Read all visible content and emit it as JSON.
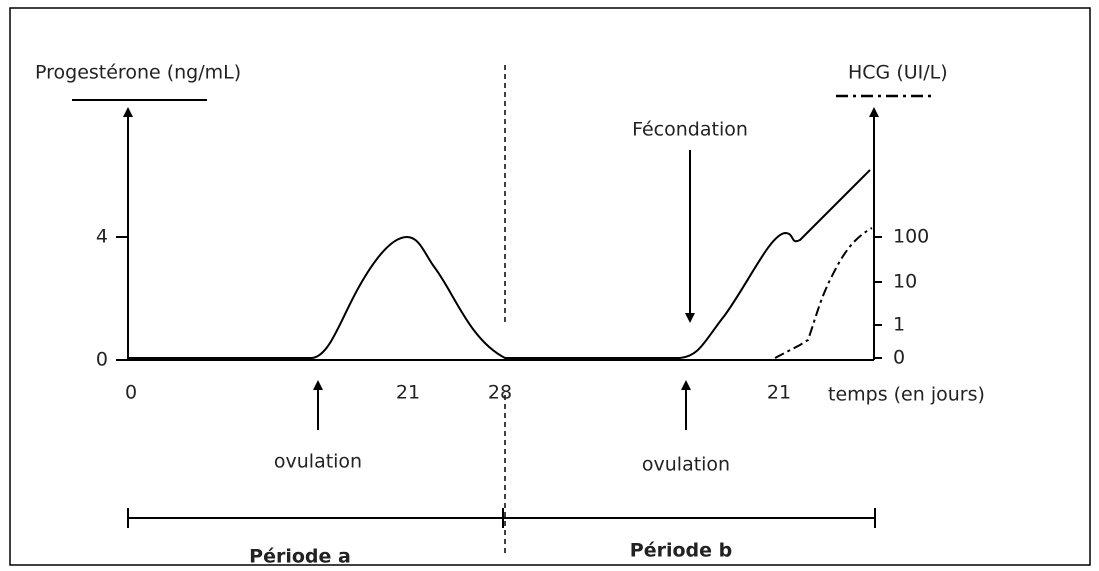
{
  "axes": {
    "left_label": "Progestérone (ng/mL)",
    "right_label": "HCG (UI/L)",
    "x_label": "temps (en jours)",
    "left_ticks": [
      "4",
      "0"
    ],
    "right_ticks": [
      "100",
      "10",
      "1",
      "0"
    ],
    "x_ticks": [
      "0",
      "21",
      "28",
      "21"
    ]
  },
  "annotations": {
    "fecondation": "Fécondation",
    "ovulation_a": "ovulation",
    "ovulation_b": "ovulation"
  },
  "periods": [
    "Période a",
    "Période b"
  ]
}
